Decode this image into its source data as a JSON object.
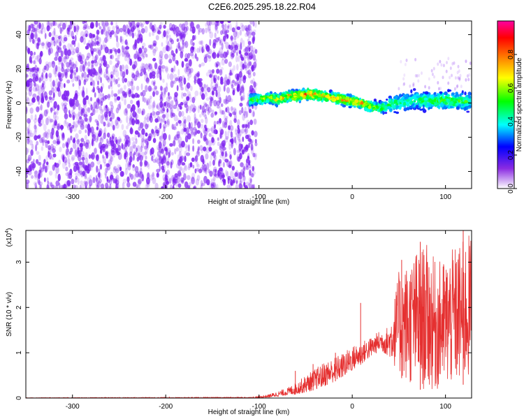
{
  "title": "C2E6.2025.295.18.22.R04",
  "colors": {
    "background": "#ffffff",
    "snr_line": "#e53030",
    "spectrogram_noise": "#7d1ff0"
  },
  "chart_data": [
    {
      "type": "heatmap",
      "name": "spectrogram",
      "xlabel": "Height of straight line (km)",
      "ylabel": "Frequency (Hz)",
      "xlim": [
        -350,
        128
      ],
      "ylim": [
        -50,
        48
      ],
      "xticks": [
        -300,
        -200,
        -100,
        0,
        100
      ],
      "xtick_labels": [
        "-300",
        "-200",
        "-100",
        "0",
        "100"
      ],
      "yticks": [
        -40,
        -20,
        0,
        20,
        40
      ],
      "ytick_labels": [
        "-40",
        "-20",
        "0",
        "20",
        "40"
      ],
      "noise_region_x": [
        -350,
        -103
      ],
      "signal_ridge": {
        "x": [
          -110,
          -100,
          -90,
          -80,
          -70,
          -60,
          -50,
          -40,
          -30,
          -20,
          -10,
          0,
          10,
          20,
          30,
          40,
          50,
          60,
          70,
          80,
          90,
          100,
          110,
          120,
          128
        ],
        "frequency": [
          2,
          2,
          3,
          2,
          4,
          4,
          5,
          5,
          4,
          3,
          2,
          1,
          0,
          -2,
          -3,
          -1,
          0,
          1,
          2,
          1,
          1,
          2,
          1,
          1,
          1
        ],
        "peak_amplitude": [
          0.55,
          0.6,
          0.7,
          0.8,
          0.75,
          0.85,
          0.95,
          0.9,
          0.8,
          0.8,
          0.85,
          0.9,
          0.8,
          0.7,
          0.55,
          0.5,
          0.45,
          0.4,
          0.45,
          0.5,
          0.5,
          0.55,
          0.5,
          0.5,
          0.45
        ]
      },
      "colorbar": {
        "label": "Normalized spectral amplitude",
        "range": [
          0,
          1
        ],
        "ticks": [
          0.0,
          0.2,
          0.4,
          0.6,
          0.8
        ],
        "tick_labels": [
          "0.0",
          "0.2",
          "0.4",
          "0.6",
          "0.8"
        ],
        "colors": [
          "#ffffff",
          "#8a2be2",
          "#0000ff",
          "#00ffff",
          "#00ff00",
          "#ffff00",
          "#ff8000",
          "#ff0000",
          "#ff00a0"
        ]
      }
    },
    {
      "type": "line",
      "name": "snr",
      "xlabel": "Height of straight line (km)",
      "ylabel": "SNR (10 * v/v)",
      "scale_label": "(x10",
      "scale_exponent": "4",
      "scale_close": ")",
      "xlim": [
        -350,
        128
      ],
      "ylim": [
        0,
        3.7
      ],
      "xticks": [
        -300,
        -200,
        -100,
        0,
        100
      ],
      "xtick_labels": [
        "-300",
        "-200",
        "-100",
        "0",
        "100"
      ],
      "yticks": [
        0,
        1,
        2,
        3
      ],
      "ytick_labels": [
        "0",
        "1",
        "2",
        "3"
      ],
      "envelope": {
        "x": [
          -350,
          -110,
          -100,
          -90,
          -80,
          -70,
          -60,
          -50,
          -40,
          -30,
          -20,
          -10,
          0,
          10,
          20,
          30,
          40,
          50,
          60,
          70,
          80,
          90,
          100,
          110,
          120,
          128
        ],
        "low": [
          0.0,
          0.0,
          0.0,
          0.01,
          0.03,
          0.06,
          0.08,
          0.12,
          0.18,
          0.25,
          0.35,
          0.45,
          0.6,
          0.75,
          0.9,
          1.05,
          0.9,
          0.5,
          0.3,
          0.2,
          0.15,
          0.15,
          0.2,
          0.25,
          0.3,
          0.35
        ],
        "high": [
          0.01,
          0.02,
          0.04,
          0.08,
          0.15,
          0.22,
          0.35,
          0.5,
          0.65,
          0.8,
          0.9,
          1.0,
          1.15,
          1.25,
          1.35,
          1.5,
          1.6,
          2.8,
          3.0,
          3.3,
          3.4,
          3.0,
          3.1,
          3.35,
          3.5,
          3.7
        ]
      },
      "spikes": [
        {
          "x": -61,
          "y": 0.6
        },
        {
          "x": -42,
          "y": 0.75
        },
        {
          "x": -18,
          "y": 1.0
        },
        {
          "x": 9,
          "y": 2.1
        },
        {
          "x": 53,
          "y": 3.05
        },
        {
          "x": 73,
          "y": 3.45
        },
        {
          "x": 119,
          "y": 3.7
        }
      ]
    }
  ]
}
